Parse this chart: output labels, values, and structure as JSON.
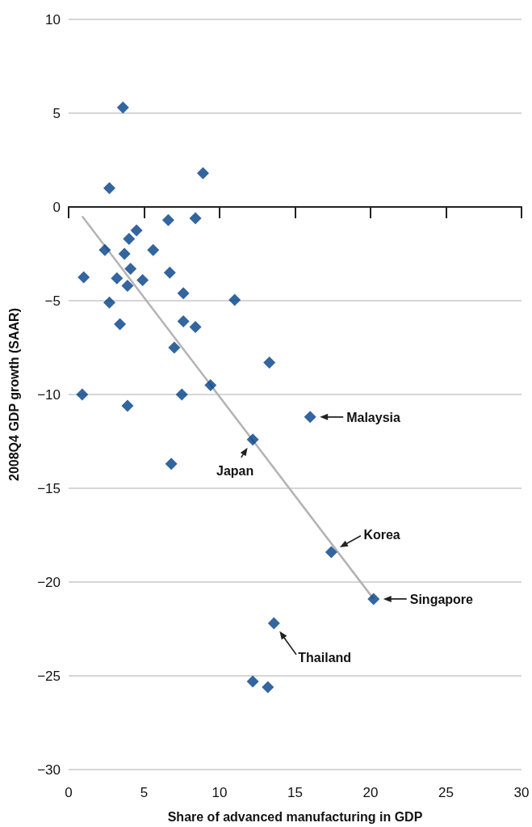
{
  "chart_data": {
    "type": "scatter",
    "xlabel": "Share of advanced manufacturing in GDP",
    "ylabel": "2008Q4 GDP growth (SAAR)",
    "xlim": [
      0,
      30
    ],
    "xticks": [
      0,
      5,
      10,
      15,
      20,
      25,
      30
    ],
    "ylim": [
      -30,
      10
    ],
    "yticks": [
      {
        "value": -30,
        "label": "−30"
      },
      {
        "value": -25,
        "label": "−25"
      },
      {
        "value": -20,
        "label": "−20"
      },
      {
        "value": -15,
        "label": "−15"
      },
      {
        "value": -10,
        "label": "−10"
      },
      {
        "value": -5,
        "label": "−5"
      },
      0,
      5,
      10
    ],
    "grid": "y",
    "marker": "diamond",
    "series": [
      {
        "type": "scatter",
        "color": "#003f87",
        "x": [
          3.6,
          2.7,
          8.9,
          6.6,
          8.4,
          4.5,
          4.0,
          2.4,
          5.6,
          3.7,
          4.1,
          1.0,
          3.2,
          3.9,
          4.9,
          6.7,
          7.6,
          11.0,
          2.7,
          3.4,
          7.6,
          8.4,
          7.0,
          13.3,
          9.4,
          0.9,
          7.5,
          3.9,
          16.0,
          12.2,
          6.8,
          17.4,
          20.2,
          13.6,
          12.2,
          13.2
        ],
        "values": [
          5.3,
          1.0,
          1.8,
          -0.7,
          -0.6,
          -1.25,
          -1.7,
          -2.3,
          -2.3,
          -2.5,
          -3.3,
          -3.75,
          -3.8,
          -4.2,
          -3.9,
          -3.5,
          -4.6,
          -4.96,
          -5.1,
          -6.25,
          -6.1,
          -6.4,
          -7.5,
          -8.3,
          -9.5,
          -10.0,
          -10.0,
          -10.6,
          -11.2,
          -12.4,
          -13.7,
          -18.4,
          -20.9,
          -22.2,
          -25.3,
          -25.6
        ]
      },
      {
        "type": "line",
        "color": "#b3b3b3",
        "marker": "none",
        "x": [
          0.9,
          20.2
        ],
        "values": [
          -0.5,
          -20.9
        ]
      }
    ],
    "annotations": [
      {
        "text": "Malaysia",
        "x": 16.0,
        "y": -11.2
      },
      {
        "text": "Japan",
        "x": 12.2,
        "y": -12.4
      },
      {
        "text": "Korea",
        "x": 17.4,
        "y": -18.4
      },
      {
        "text": "Singapore",
        "x": 20.2,
        "y": -20.9
      },
      {
        "text": "Thailand",
        "x": 13.6,
        "y": -22.2
      }
    ]
  }
}
